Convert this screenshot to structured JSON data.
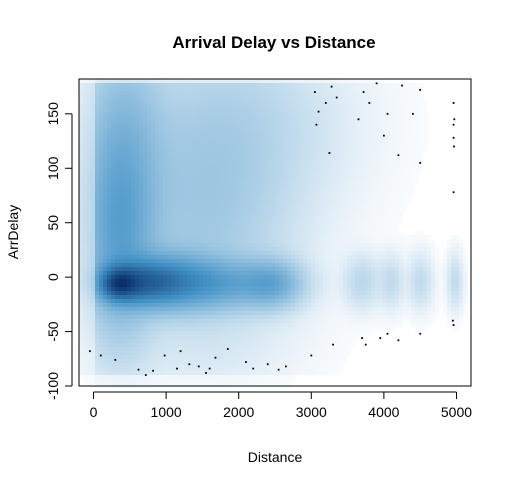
{
  "chart_data": {
    "type": "heatmap",
    "subtype": "smoothScatter",
    "title": "Arrival Delay vs Distance",
    "xlabel": "Distance",
    "ylabel": "ArrDelay",
    "xlim": [
      -200,
      5200
    ],
    "ylim": [
      -100,
      182
    ],
    "xticks": [
      0,
      1000,
      2000,
      3000,
      4000,
      5000
    ],
    "yticks": [
      -100,
      -50,
      0,
      50,
      100,
      150
    ],
    "xtick_labels": [
      "0",
      "1000",
      "2000",
      "3000",
      "4000",
      "5000"
    ],
    "ytick_labels": [
      "-100",
      "-50",
      "0",
      "50",
      "100",
      "150"
    ],
    "color_low": "#ffffff",
    "color_high": "#08306b",
    "density_blobs": [
      {
        "x": 350,
        "y": -6,
        "sx": 160,
        "sy": 9,
        "w": 1.0
      },
      {
        "x": 650,
        "y": -5,
        "sx": 320,
        "sy": 12,
        "w": 0.7
      },
      {
        "x": 1050,
        "y": -4,
        "sx": 380,
        "sy": 16,
        "w": 0.45
      },
      {
        "x": 350,
        "y": 35,
        "sx": 300,
        "sy": 55,
        "w": 0.35
      },
      {
        "x": 400,
        "y": 120,
        "sx": 350,
        "sy": 60,
        "w": 0.2
      },
      {
        "x": 1700,
        "y": -6,
        "sx": 500,
        "sy": 14,
        "w": 0.35
      },
      {
        "x": 2450,
        "y": -6,
        "sx": 250,
        "sy": 13,
        "w": 0.3
      },
      {
        "x": 1500,
        "y": 60,
        "sx": 700,
        "sy": 70,
        "w": 0.12
      },
      {
        "x": 2000,
        "y": 140,
        "sx": 800,
        "sy": 50,
        "w": 0.06
      },
      {
        "x": 3700,
        "y": -4,
        "sx": 150,
        "sy": 14,
        "w": 0.06
      },
      {
        "x": 4100,
        "y": -4,
        "sx": 100,
        "sy": 14,
        "w": 0.05
      },
      {
        "x": 4500,
        "y": -4,
        "sx": 100,
        "sy": 14,
        "w": 0.05
      },
      {
        "x": 4980,
        "y": -4,
        "sx": 60,
        "sy": 14,
        "w": 0.05
      }
    ],
    "outliers": [
      [
        -50,
        -68
      ],
      [
        100,
        -72
      ],
      [
        300,
        -76
      ],
      [
        620,
        -85
      ],
      [
        720,
        -90
      ],
      [
        820,
        -86
      ],
      [
        980,
        -72
      ],
      [
        1150,
        -84
      ],
      [
        1200,
        -68
      ],
      [
        1320,
        -80
      ],
      [
        1450,
        -82
      ],
      [
        1550,
        -88
      ],
      [
        1600,
        -84
      ],
      [
        1680,
        -74
      ],
      [
        1850,
        -66
      ],
      [
        2100,
        -78
      ],
      [
        2200,
        -84
      ],
      [
        2400,
        -80
      ],
      [
        2550,
        -85
      ],
      [
        2650,
        -82
      ],
      [
        3000,
        -72
      ],
      [
        3300,
        -62
      ],
      [
        3700,
        -56
      ],
      [
        3750,
        -62
      ],
      [
        3950,
        -56
      ],
      [
        4050,
        -52
      ],
      [
        4200,
        -58
      ],
      [
        4500,
        -52
      ],
      [
        4950,
        -40
      ],
      [
        4960,
        -44
      ],
      [
        3050,
        170
      ],
      [
        3100,
        152
      ],
      [
        3200,
        160
      ],
      [
        3280,
        175
      ],
      [
        3350,
        165
      ],
      [
        3250,
        114
      ],
      [
        3720,
        170
      ],
      [
        3800,
        160
      ],
      [
        3900,
        178
      ],
      [
        4050,
        150
      ],
      [
        4250,
        176
      ],
      [
        4400,
        150
      ],
      [
        4500,
        172
      ],
      [
        4200,
        112
      ],
      [
        4000,
        130
      ],
      [
        3070,
        140
      ],
      [
        4960,
        160
      ],
      [
        4970,
        145
      ],
      [
        4960,
        128
      ],
      [
        4965,
        120
      ],
      [
        4960,
        78
      ],
      [
        4960,
        140
      ],
      [
        4500,
        105
      ],
      [
        3650,
        145
      ]
    ]
  }
}
